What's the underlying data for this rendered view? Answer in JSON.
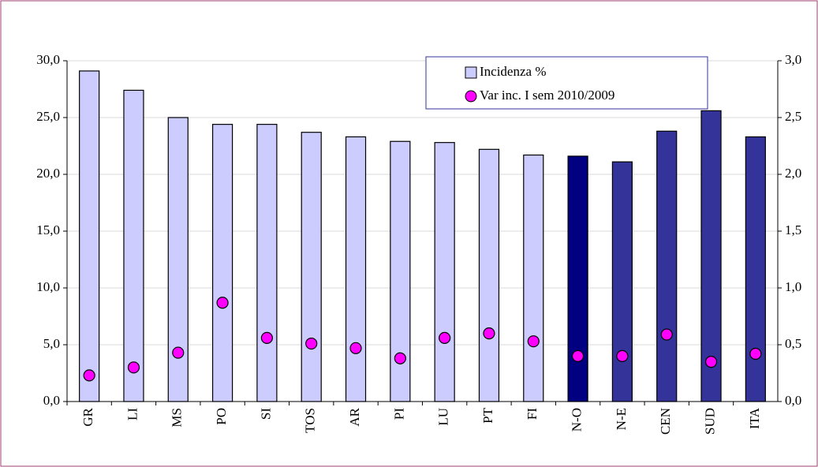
{
  "chart_data": {
    "type": "bar",
    "categories": [
      "GR",
      "LI",
      "MS",
      "PO",
      "SI",
      "TOS",
      "AR",
      "PI",
      "LU",
      "PT",
      "FI",
      "N-O",
      "N-E",
      "CEN",
      "SUD",
      "ITA"
    ],
    "series": [
      {
        "name": "Incidenza %",
        "type": "bar",
        "color": "#ccccff",
        "colors": [
          "#ccccff",
          "#ccccff",
          "#ccccff",
          "#ccccff",
          "#ccccff",
          "#ccccff",
          "#ccccff",
          "#ccccff",
          "#ccccff",
          "#ccccff",
          "#ccccff",
          "#000080",
          "#333399",
          "#333399",
          "#333399",
          "#333399"
        ],
        "values": [
          29.1,
          27.4,
          25.0,
          24.4,
          24.4,
          23.7,
          23.3,
          22.9,
          22.8,
          22.2,
          21.7,
          21.6,
          21.1,
          23.8,
          25.6,
          23.3
        ]
      },
      {
        "name": "Var inc. I sem 2010/2009",
        "type": "scatter",
        "axis": "y2",
        "color": "#ff00ff",
        "values": [
          0.23,
          0.3,
          0.43,
          0.87,
          0.56,
          0.51,
          0.47,
          0.38,
          0.56,
          0.6,
          0.53,
          0.4,
          0.4,
          0.59,
          0.35,
          0.42
        ]
      }
    ],
    "ylim": [
      0,
      30
    ],
    "yticks": [
      {
        "value": 0,
        "label": "0,0"
      },
      {
        "value": 5,
        "label": "5,0"
      },
      {
        "value": 10,
        "label": "10,0"
      },
      {
        "value": 15,
        "label": "15,0"
      },
      {
        "value": 20,
        "label": "20,0"
      },
      {
        "value": 25,
        "label": "25,0"
      },
      {
        "value": 30,
        "label": "30,0"
      }
    ],
    "y2lim": [
      0,
      3
    ],
    "y2ticks": [
      {
        "value": 0,
        "label": "0,0"
      },
      {
        "value": 0.5,
        "label": "0,5"
      },
      {
        "value": 1,
        "label": "1,0"
      },
      {
        "value": 1.5,
        "label": "1,5"
      },
      {
        "value": 2,
        "label": "2,0"
      },
      {
        "value": 2.5,
        "label": "2,5"
      },
      {
        "value": 3,
        "label": "3,0"
      }
    ],
    "grid": true,
    "legend": "top-right"
  }
}
